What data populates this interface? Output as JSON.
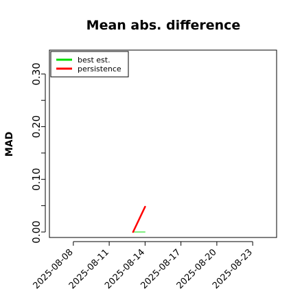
{
  "chart_data": {
    "type": "line",
    "title": "Mean abs. difference",
    "xlabel": "",
    "ylabel": "MAD",
    "ylim": [
      0,
      0.335
    ],
    "y_ticks": [
      0.0,
      0.1,
      0.2,
      0.3
    ],
    "y_tick_labels": [
      "0.00",
      "0.10",
      "0.20",
      "0.30"
    ],
    "x_range": [
      "2025-08-06",
      "2025-08-25"
    ],
    "x_ticks": [
      "2025-08-08",
      "2025-08-11",
      "2025-08-14",
      "2025-08-17",
      "2025-08-20",
      "2025-08-23"
    ],
    "x_tick_labels": [
      "2025-08-08",
      "2025-08-11",
      "2025-08-14",
      "2025-08-17",
      "2025-08-20",
      "2025-08-23"
    ],
    "grid": false,
    "legend_position": "top-left",
    "series": [
      {
        "name": "best est.",
        "color": "#00dd00",
        "points": [
          [
            "2025-08-13",
            0.0
          ],
          [
            "2025-08-14",
            0.0
          ]
        ]
      },
      {
        "name": "persistence",
        "color": "#ff0000",
        "points": [
          [
            "2025-08-13",
            0.0
          ],
          [
            "2025-08-14",
            0.048
          ]
        ]
      }
    ]
  }
}
